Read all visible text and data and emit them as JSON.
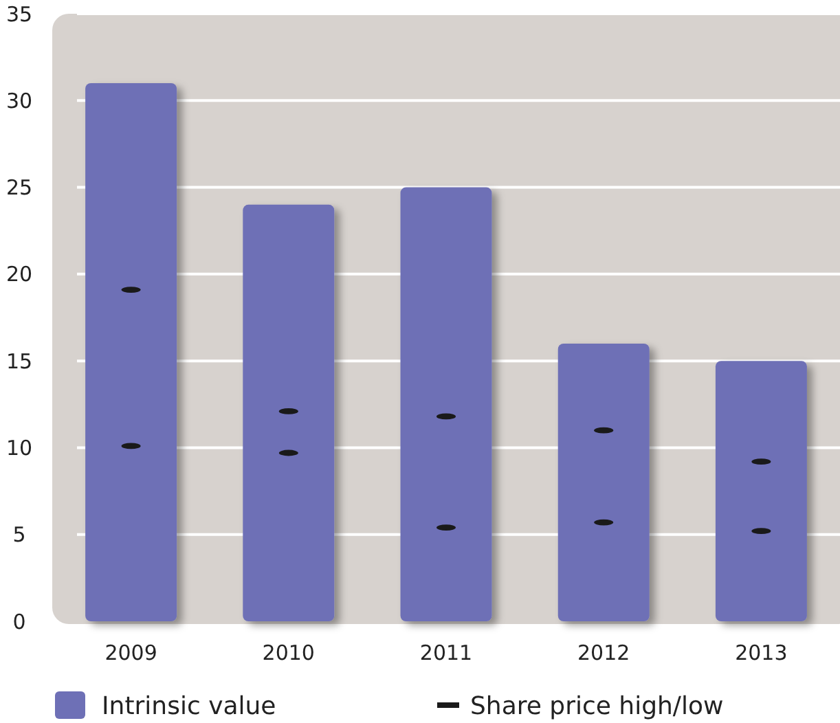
{
  "chart_data": {
    "type": "bar",
    "categories": [
      "2009",
      "2010",
      "2011",
      "2012",
      "2013"
    ],
    "series": [
      {
        "name": "Intrinsic value",
        "color": "#6e70b6",
        "values": [
          31,
          24,
          25,
          16,
          15
        ]
      },
      {
        "name": "Share price high/low",
        "type": "scatter",
        "color": "#1a1a1a",
        "values": [
          19.1,
          12.1,
          11.8,
          11,
          9.2
        ]
      },
      {
        "type": "scatter",
        "color": "#1a1a1a",
        "values": [
          10.1,
          9.7,
          5.4,
          5.7,
          5.2
        ]
      }
    ],
    "ylim": [
      0,
      35
    ],
    "yticks": [
      0,
      5,
      10,
      15,
      20,
      25,
      30,
      35
    ],
    "grid": "y",
    "legend": "bottom"
  }
}
